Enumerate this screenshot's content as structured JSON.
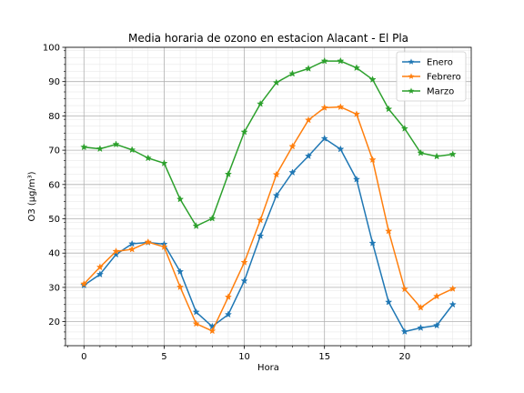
{
  "chart_data": {
    "type": "line",
    "title": "Media horaria de ozono en estacion Alacant - El Pla",
    "xlabel": "Hora",
    "ylabel": "O3 (µg/m³)",
    "xlim": [
      -1.15,
      24.15
    ],
    "ylim": [
      13,
      100
    ],
    "x_ticks": [
      0,
      5,
      10,
      15,
      20
    ],
    "y_ticks": [
      20,
      30,
      40,
      50,
      60,
      70,
      80,
      90,
      100
    ],
    "grid": true,
    "legend_position": "top-right",
    "x": [
      0,
      1,
      2,
      3,
      4,
      5,
      6,
      7,
      8,
      9,
      10,
      11,
      12,
      13,
      14,
      15,
      16,
      17,
      18,
      19,
      20,
      21,
      22,
      23
    ],
    "series": [
      {
        "name": "Enero",
        "color": "#1f77b4",
        "marker": "star",
        "values": [
          30.6,
          33.8,
          39.6,
          42.7,
          43.1,
          42.6,
          34.6,
          22.8,
          18.6,
          22.1,
          31.9,
          45.0,
          56.8,
          63.5,
          68.3,
          73.4,
          70.3,
          61.5,
          42.9,
          25.7,
          17.1,
          18.2,
          18.9,
          25.0
        ]
      },
      {
        "name": "Febrero",
        "color": "#ff7f0e",
        "marker": "star",
        "values": [
          31.0,
          35.9,
          40.5,
          41.1,
          43.2,
          41.8,
          30.1,
          19.4,
          17.3,
          27.2,
          37.3,
          49.6,
          62.9,
          71.1,
          78.8,
          82.4,
          82.6,
          80.5,
          67.2,
          46.4,
          29.5,
          24.1,
          27.4,
          29.6
        ]
      },
      {
        "name": "Marzo",
        "color": "#2ca02c",
        "marker": "star",
        "values": [
          70.9,
          70.4,
          71.7,
          70.1,
          67.7,
          66.2,
          55.7,
          47.9,
          50.1,
          63.0,
          75.3,
          83.5,
          89.7,
          92.3,
          93.8,
          96.0,
          96.0,
          94.0,
          90.6,
          82.0,
          76.3,
          69.2,
          68.2,
          68.8
        ]
      }
    ]
  }
}
